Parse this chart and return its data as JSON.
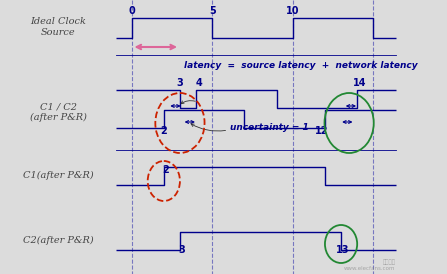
{
  "bg_color": "#dcdcdc",
  "signal_color": "#00008B",
  "dashed_color": "#6666bb",
  "labels_left": [
    "Ideal Clock\nSource",
    "C1 / C2\n(after P&R)",
    "C1(after P&R)",
    "C2(after P&R)"
  ],
  "latency_text": "latency  =  source latency  +  network latency",
  "uncertainty_text": "uncertainty = 1",
  "watermark": "www.elecfans.com"
}
